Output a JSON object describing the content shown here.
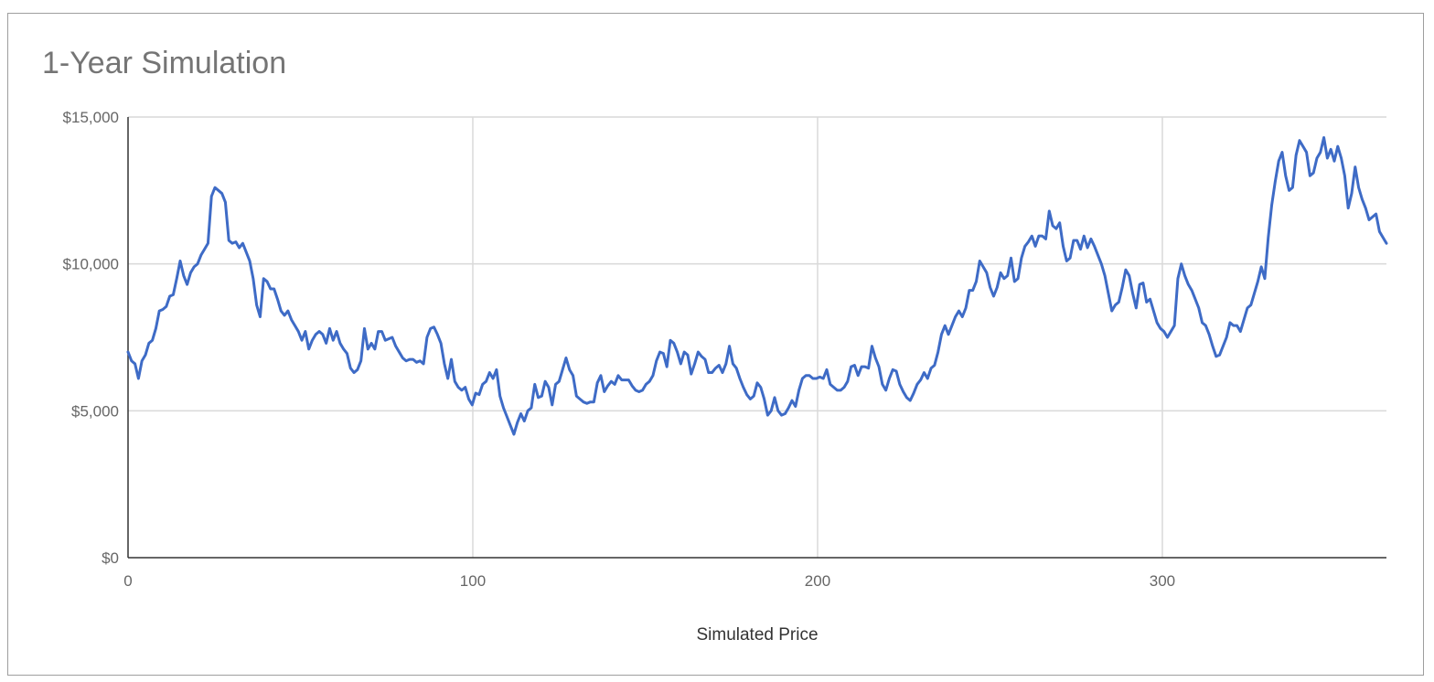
{
  "chart_data": {
    "type": "line",
    "title": "1-Year Simulation",
    "xlabel": "Simulated Price",
    "ylabel": "",
    "xlim": [
      0,
      365
    ],
    "ylim": [
      0,
      15000
    ],
    "x_ticks": [
      "0",
      "100",
      "200",
      "300"
    ],
    "x_tick_values": [
      0,
      100,
      200,
      300
    ],
    "y_ticks": [
      "$0",
      "$5,000",
      "$10,000",
      "$15,000"
    ],
    "y_tick_values": [
      0,
      5000,
      10000,
      15000
    ],
    "grid": true,
    "legend": "none",
    "series": [
      {
        "color": "#3e6bc6",
        "values": [
          7000,
          6700,
          6600,
          6100,
          6700,
          6900,
          7300,
          7400,
          7800,
          8400,
          8450,
          8550,
          8900,
          8950,
          9500,
          10100,
          9600,
          9300,
          9700,
          9900,
          10000,
          10300,
          10500,
          10700,
          12300,
          12600,
          12500,
          12400,
          12100,
          10800,
          10700,
          10750,
          10550,
          10700,
          10400,
          10100,
          9500,
          8600,
          8200,
          9500,
          9400,
          9150,
          9150,
          8800,
          8400,
          8250,
          8400,
          8100,
          7900,
          7700,
          7400,
          7700,
          7100,
          7400,
          7600,
          7700,
          7600,
          7300,
          7800,
          7400,
          7700,
          7300,
          7100,
          6950,
          6450,
          6300,
          6400,
          6700,
          7800,
          7100,
          7300,
          7100,
          7700,
          7700,
          7400,
          7450,
          7500,
          7200,
          7000,
          6800,
          6700,
          6750,
          6750,
          6650,
          6700,
          6600,
          7500,
          7800,
          7850,
          7600,
          7300,
          6600,
          6100,
          6750,
          6000,
          5800,
          5700,
          5800,
          5400,
          5200,
          5600,
          5550,
          5900,
          6000,
          6300,
          6100,
          6400,
          5500,
          5100,
          4800,
          4500,
          4200,
          4600,
          4900,
          4650,
          5000,
          5100,
          5900,
          5450,
          5500,
          6000,
          5800,
          5200,
          5900,
          6000,
          6400,
          6800,
          6400,
          6200,
          5500,
          5400,
          5300,
          5250,
          5300,
          5300,
          5950,
          6200,
          5650,
          5850,
          6000,
          5900,
          6200,
          6050,
          6050,
          6050,
          5850,
          5700,
          5650,
          5700,
          5900,
          6000,
          6200,
          6700,
          7000,
          6950,
          6500,
          7400,
          7300,
          7000,
          6600,
          7000,
          6900,
          6250,
          6600,
          7000,
          6850,
          6750,
          6300,
          6300,
          6450,
          6550,
          6300,
          6600,
          7200,
          6600,
          6450,
          6100,
          5800,
          5550,
          5400,
          5500,
          5950,
          5800,
          5400,
          4850,
          5000,
          5450,
          5000,
          4850,
          4900,
          5100,
          5350,
          5150,
          5700,
          6100,
          6200,
          6200,
          6100,
          6100,
          6150,
          6100,
          6400,
          5900,
          5800,
          5700,
          5700,
          5800,
          6000,
          6500,
          6550,
          6200,
          6500,
          6500,
          6450,
          7200,
          6800,
          6500,
          5900,
          5700,
          6100,
          6400,
          6350,
          5900,
          5650,
          5450,
          5350,
          5600,
          5900,
          6050,
          6300,
          6100,
          6450,
          6550,
          7000,
          7600,
          7900,
          7600,
          7900,
          8200,
          8400,
          8200,
          8500,
          9100,
          9100,
          9400,
          10100,
          9900,
          9700,
          9200,
          8900,
          9200,
          9700,
          9500,
          9600,
          10200,
          9400,
          9500,
          10200,
          10600,
          10750,
          10950,
          10600,
          10950,
          10950,
          10850,
          11800,
          11300,
          11200,
          11400,
          10600,
          10100,
          10200,
          10800,
          10800,
          10500,
          10950,
          10550,
          10850,
          10600,
          10300,
          10000,
          9600,
          9000,
          8400,
          8600,
          8700,
          9200,
          9800,
          9600,
          9000,
          8500,
          9300,
          9350,
          8700,
          8800,
          8400,
          8000,
          7800,
          7700,
          7500,
          7700,
          7900,
          9500,
          10000,
          9600,
          9300,
          9100,
          8800,
          8500,
          8000,
          7900,
          7600,
          7200,
          6850,
          6900,
          7200,
          7500,
          8000,
          7900,
          7900,
          7700,
          8100,
          8500,
          8600,
          9000,
          9400,
          9900,
          9500,
          10900,
          12000,
          12800,
          13500,
          13800,
          13000,
          12500,
          12600,
          13700,
          14200,
          14000,
          13800,
          13000,
          13100,
          13600,
          13800,
          14300,
          13600,
          13900,
          13500,
          14000,
          13600,
          13000,
          11900,
          12400,
          13300,
          12600,
          12200,
          11900,
          11500,
          11600,
          11700,
          11100,
          10900,
          10700
        ]
      }
    ]
  }
}
